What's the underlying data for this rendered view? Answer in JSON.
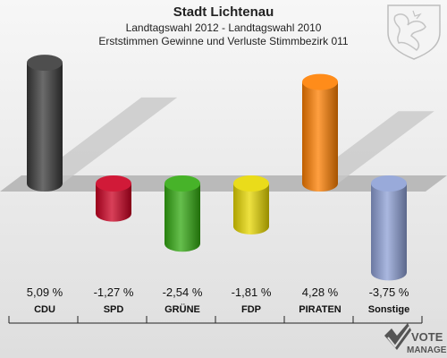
{
  "header": {
    "title": "Stadt Lichtenau",
    "subtitle": "Landtagswahl 2012 - Landtagswahl 2010",
    "subtitle2": "Erststimmen Gewinne und Verluste Stimmbezirk 011"
  },
  "chart_data": {
    "type": "bar",
    "title": "Stadt Lichtenau",
    "subtitle": "Landtagswahl 2012 - Landtagswahl 2010",
    "categories": [
      "CDU",
      "SPD",
      "GRÜNE",
      "FDP",
      "PIRATEN",
      "Sonstige"
    ],
    "values": [
      5.09,
      -1.27,
      -2.54,
      -1.81,
      4.28,
      -3.75
    ],
    "value_labels": [
      "5,09 %",
      "-1,27 %",
      "-2,54 %",
      "-1,81 %",
      "4,28 %",
      "-3,75 %"
    ],
    "colors": [
      "#3a3a3a",
      "#cc0022",
      "#33aa11",
      "#e8d800",
      "#ff7f00",
      "#8ea0d6"
    ],
    "ylim": [
      -3.75,
      5.09
    ],
    "grid": false,
    "legend": "none"
  },
  "branding": {
    "logo_line1": "VOTE",
    "logo_line2": "MANAGER",
    "crest_icon": "coat-of-arms-icon"
  }
}
